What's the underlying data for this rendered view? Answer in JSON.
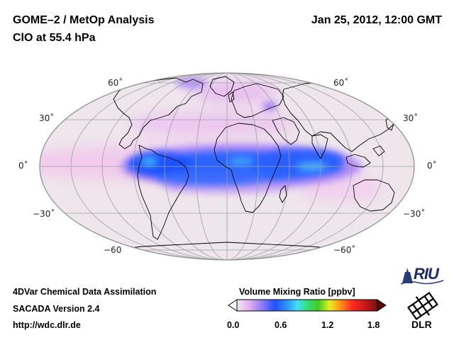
{
  "header": {
    "title_line1": "GOME–2 / MetOp Analysis",
    "title_line2": "ClO at 55.4 hPa",
    "datetime": "Jan 25, 2012, 12:00 GMT"
  },
  "map": {
    "lat_labels": {
      "n60_left": "60˚",
      "n30_left": "30˚",
      "eq_left": "0˚",
      "s30_left": "−30˚",
      "s60_left": "−60",
      "n60_right": "60˚",
      "n30_right": "30˚",
      "eq_right": "0˚",
      "s30_right": "−30˚",
      "s60_right": "−60˚"
    },
    "background_color": "#efe6ec",
    "low_color": "#f0c6ec",
    "high_color": "#1f56ff"
  },
  "footer": {
    "line1": "4DVar Chemical Data Assimilation",
    "line2": "SACADA Version 2.4",
    "line3": "http://wdc.dlr.de"
  },
  "colorbar": {
    "title": "Volume Mixing Ratio [ppbv]",
    "ticks": [
      "0.0",
      "0.6",
      "1.2",
      "1.8"
    ]
  },
  "logos": {
    "riu": "RIU",
    "dlr": "DLR"
  }
}
